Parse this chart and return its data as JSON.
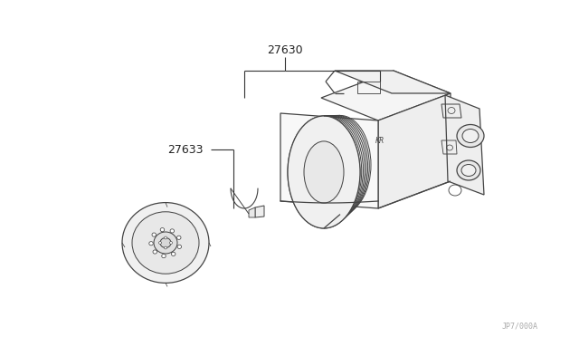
{
  "background_color": "#ffffff",
  "line_color": "#444444",
  "label_27630": "27630",
  "label_27633": "27633",
  "watermark": "JP7/000A",
  "figsize": [
    6.4,
    3.72
  ],
  "dpi": 100
}
